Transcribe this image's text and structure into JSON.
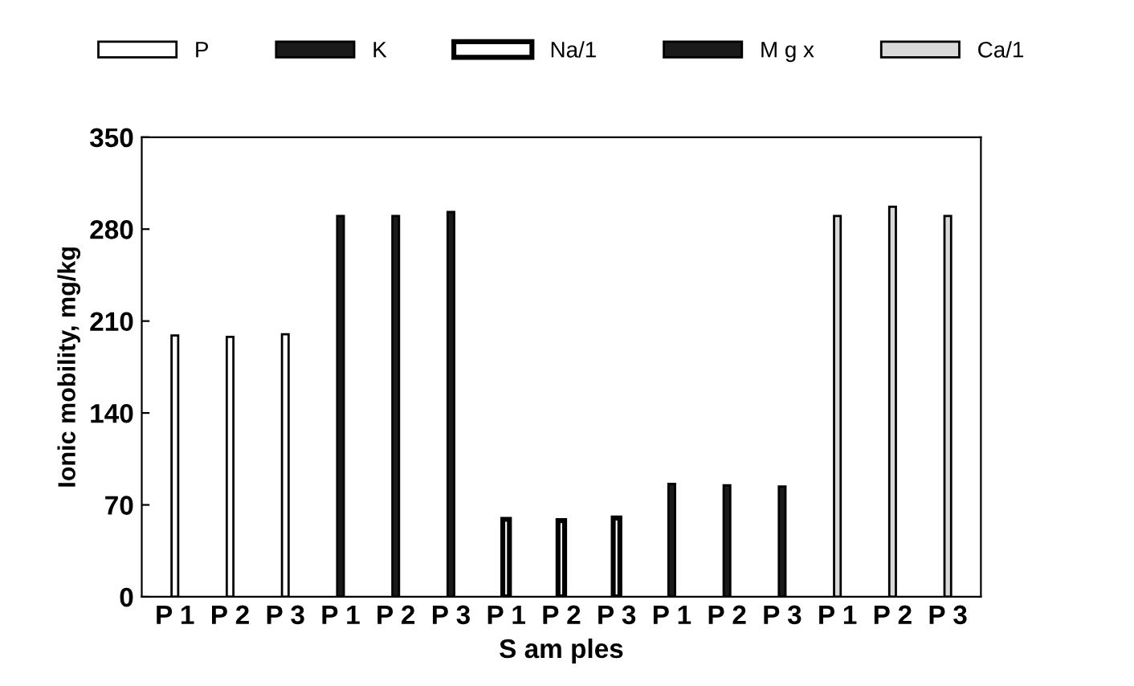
{
  "chart_data": {
    "type": "bar",
    "xlabel": "S am ples",
    "ylabel": "Ionic mobility, mg/kg",
    "categories": [
      "P 1",
      "P 2",
      "P 3",
      "P 1",
      "P 2",
      "P 3",
      "P 1",
      "P 2",
      "P 3",
      "P 1",
      "P 2",
      "P 3",
      "P 1",
      "P 2",
      "P 3"
    ],
    "series": [
      {
        "name": "P",
        "color": "#ffffff",
        "values": [
          199,
          198,
          200,
          null,
          null,
          null,
          null,
          null,
          null,
          null,
          null,
          null,
          null,
          null,
          null
        ]
      },
      {
        "name": "K",
        "color": "#1a1a1a",
        "values": [
          null,
          null,
          null,
          290,
          290,
          293,
          null,
          null,
          null,
          null,
          null,
          null,
          null,
          null,
          null
        ]
      },
      {
        "name": "Na/1",
        "color": "#ffffff",
        "values": [
          null,
          null,
          null,
          null,
          null,
          null,
          59,
          58,
          60,
          null,
          null,
          null,
          null,
          null,
          null
        ]
      },
      {
        "name": "M g x",
        "color": "#1a1a1a",
        "values": [
          null,
          null,
          null,
          null,
          null,
          null,
          null,
          null,
          null,
          86,
          85,
          84,
          null,
          null,
          null
        ]
      },
      {
        "name": "Ca/1",
        "color": "#d9d9d9",
        "values": [
          null,
          null,
          null,
          null,
          null,
          null,
          null,
          null,
          null,
          null,
          null,
          null,
          290,
          297,
          290
        ]
      }
    ],
    "ylim": [
      0,
      350
    ],
    "yticks": [
      0,
      70,
      140,
      210,
      280,
      350
    ],
    "grid": false,
    "legend": "top"
  }
}
